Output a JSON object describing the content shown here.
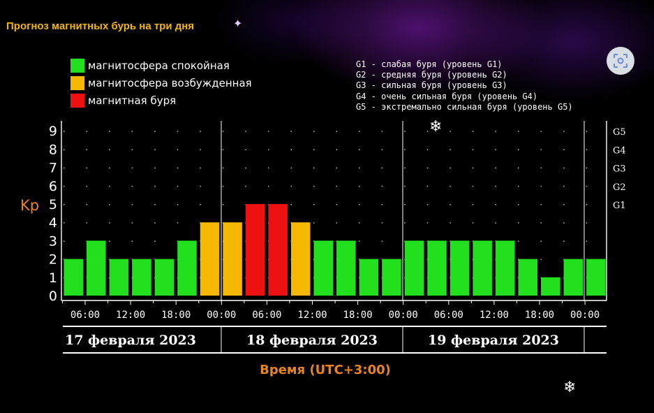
{
  "title": "Прогноз магнитных бурь на три дня",
  "legend": [
    {
      "label": "магнитосфера спокойная",
      "color": "#22e01e"
    },
    {
      "label": "магнитосфера возбужденная",
      "color": "#f5b800"
    },
    {
      "label": "магнитная буря",
      "color": "#ee1111"
    }
  ],
  "storm_levels": [
    "G1 - слабая буря (уровень G1)",
    "G2 - средняя буря (уровень G2)",
    "G3 - сильная буря (уровень G3)",
    "G4 - очень сильная буря (уровень G4)",
    "G5 - экстремально сильная буря (уровень G5)"
  ],
  "icons": {
    "scan_button": "scan-icon",
    "sparkle": "sparkle-icon",
    "snowflake": "snowflake-icon"
  },
  "chart_data": {
    "type": "bar",
    "ylabel": "Kp",
    "xlabel": "Время (UTC+3:00)",
    "ylim": [
      0,
      9
    ],
    "yticks": [
      "0",
      "1",
      "2",
      "3",
      "4",
      "5",
      "6",
      "7",
      "8",
      "9"
    ],
    "g_ticks": [
      {
        "label": "G1",
        "kp": 5
      },
      {
        "label": "G2",
        "kp": 6
      },
      {
        "label": "G3",
        "kp": 7
      },
      {
        "label": "G4",
        "kp": 8
      },
      {
        "label": "G5",
        "kp": 9
      }
    ],
    "days": [
      "17 февраля 2023",
      "18 февраля 2023",
      "19 февраля 2023"
    ],
    "time_labels": [
      "06:00",
      "12:00",
      "18:00",
      "00:00",
      "06:00",
      "12:00",
      "18:00",
      "00:00",
      "06:00",
      "12:00",
      "18:00",
      "00:00"
    ],
    "values": [
      2,
      3,
      2,
      2,
      2,
      3,
      4,
      4,
      5,
      5,
      4,
      3,
      3,
      2,
      2,
      3,
      3,
      3,
      3,
      3,
      2,
      1,
      2,
      2
    ],
    "levels": [
      "quiet",
      "quiet",
      "quiet",
      "quiet",
      "quiet",
      "quiet",
      "excited",
      "excited",
      "storm",
      "storm",
      "excited",
      "quiet",
      "quiet",
      "quiet",
      "quiet",
      "quiet",
      "quiet",
      "quiet",
      "quiet",
      "quiet",
      "quiet",
      "quiet",
      "quiet",
      "quiet"
    ],
    "level_colors": {
      "quiet": "#22e01e",
      "excited": "#f5b800",
      "storm": "#ee1111"
    },
    "grid": true,
    "legend_position": "top-left"
  }
}
